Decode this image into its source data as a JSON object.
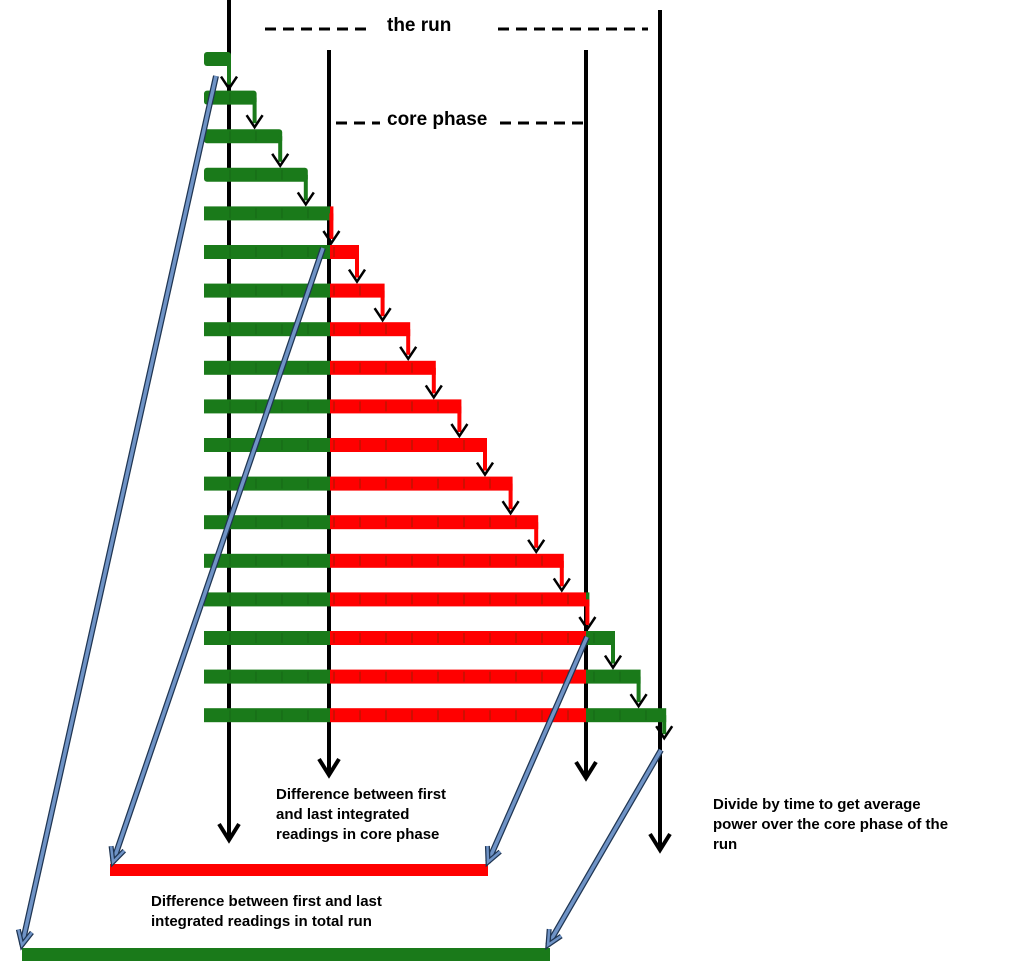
{
  "labels": {
    "the_run": "the run",
    "core_phase": "core phase",
    "core_difference": [
      "Difference between first",
      "and last integrated",
      "readings in core phase"
    ],
    "total_difference": [
      "Difference between first and last",
      "integrated readings in total run"
    ],
    "divide_note": [
      "Divide by time to get average",
      "power over the core phase of the",
      "run"
    ]
  },
  "colors": {
    "outside_core": "#1a7a1a",
    "inside_core": "#ff0000",
    "integration_arrow": "#6f93c6",
    "line": "#000000"
  }
}
